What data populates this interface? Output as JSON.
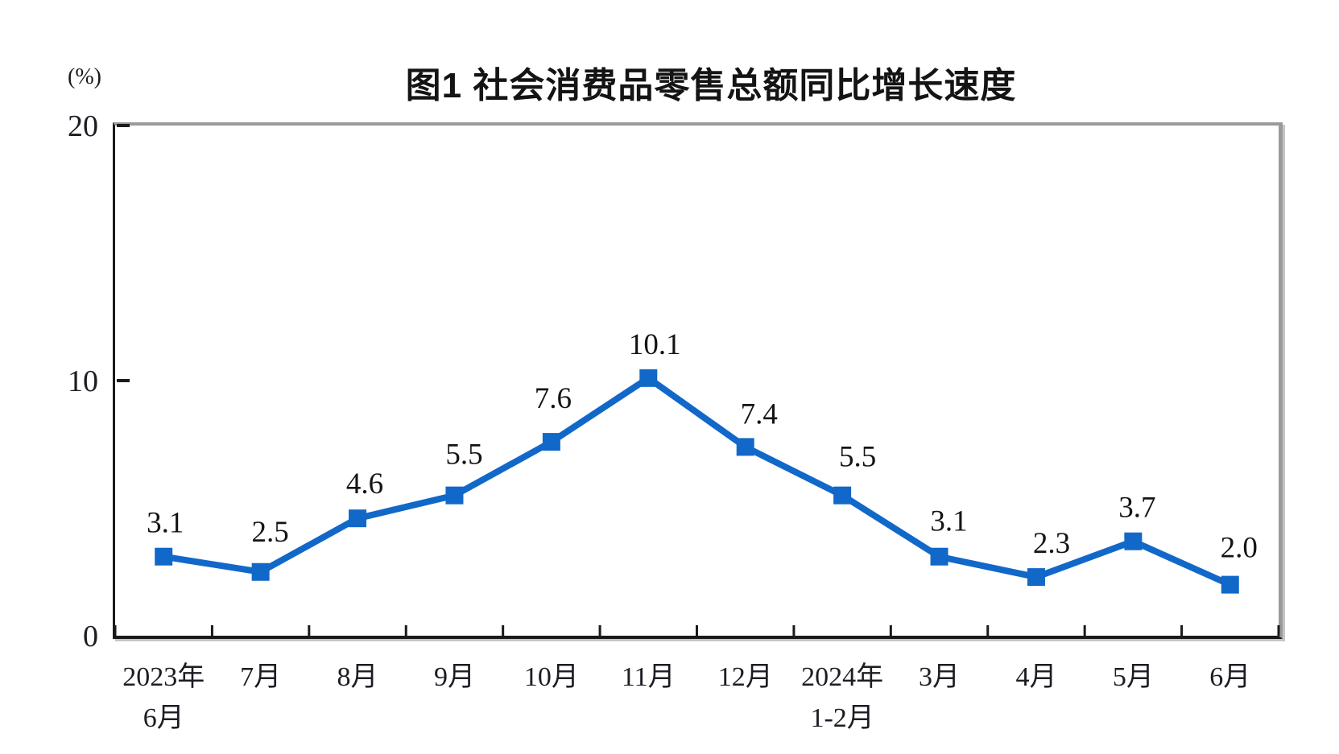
{
  "chart_data": {
    "type": "line",
    "title": "图1 社会消费品零售总额同比增长速度",
    "y_axis_unit": "(%)",
    "categories": [
      "2023年|6月",
      "7月",
      "8月",
      "9月",
      "10月",
      "11月",
      "12月",
      "2024年|1-2月",
      "3月",
      "4月",
      "5月",
      "6月"
    ],
    "values": [
      3.1,
      2.5,
      4.6,
      5.5,
      7.6,
      10.1,
      7.4,
      5.5,
      3.1,
      2.3,
      3.7,
      2.0
    ],
    "data_labels": [
      "3.1",
      "2.5",
      "4.6",
      "5.5",
      "7.6",
      "10.1",
      "7.4",
      "5.5",
      "3.1",
      "2.3",
      "3.7",
      "2.0"
    ],
    "y_ticks": [
      0,
      10,
      20
    ],
    "ylim": [
      0,
      20
    ],
    "grid": false,
    "legend_position": "none",
    "marker_shape": "square",
    "line_color": "#1268c8",
    "marker_color": "#1268c8",
    "axis_color": "#1a1a1a",
    "frame_color": "#9a9a9a",
    "label_color": "#141414",
    "tick_label_color": "#1c1c24"
  }
}
